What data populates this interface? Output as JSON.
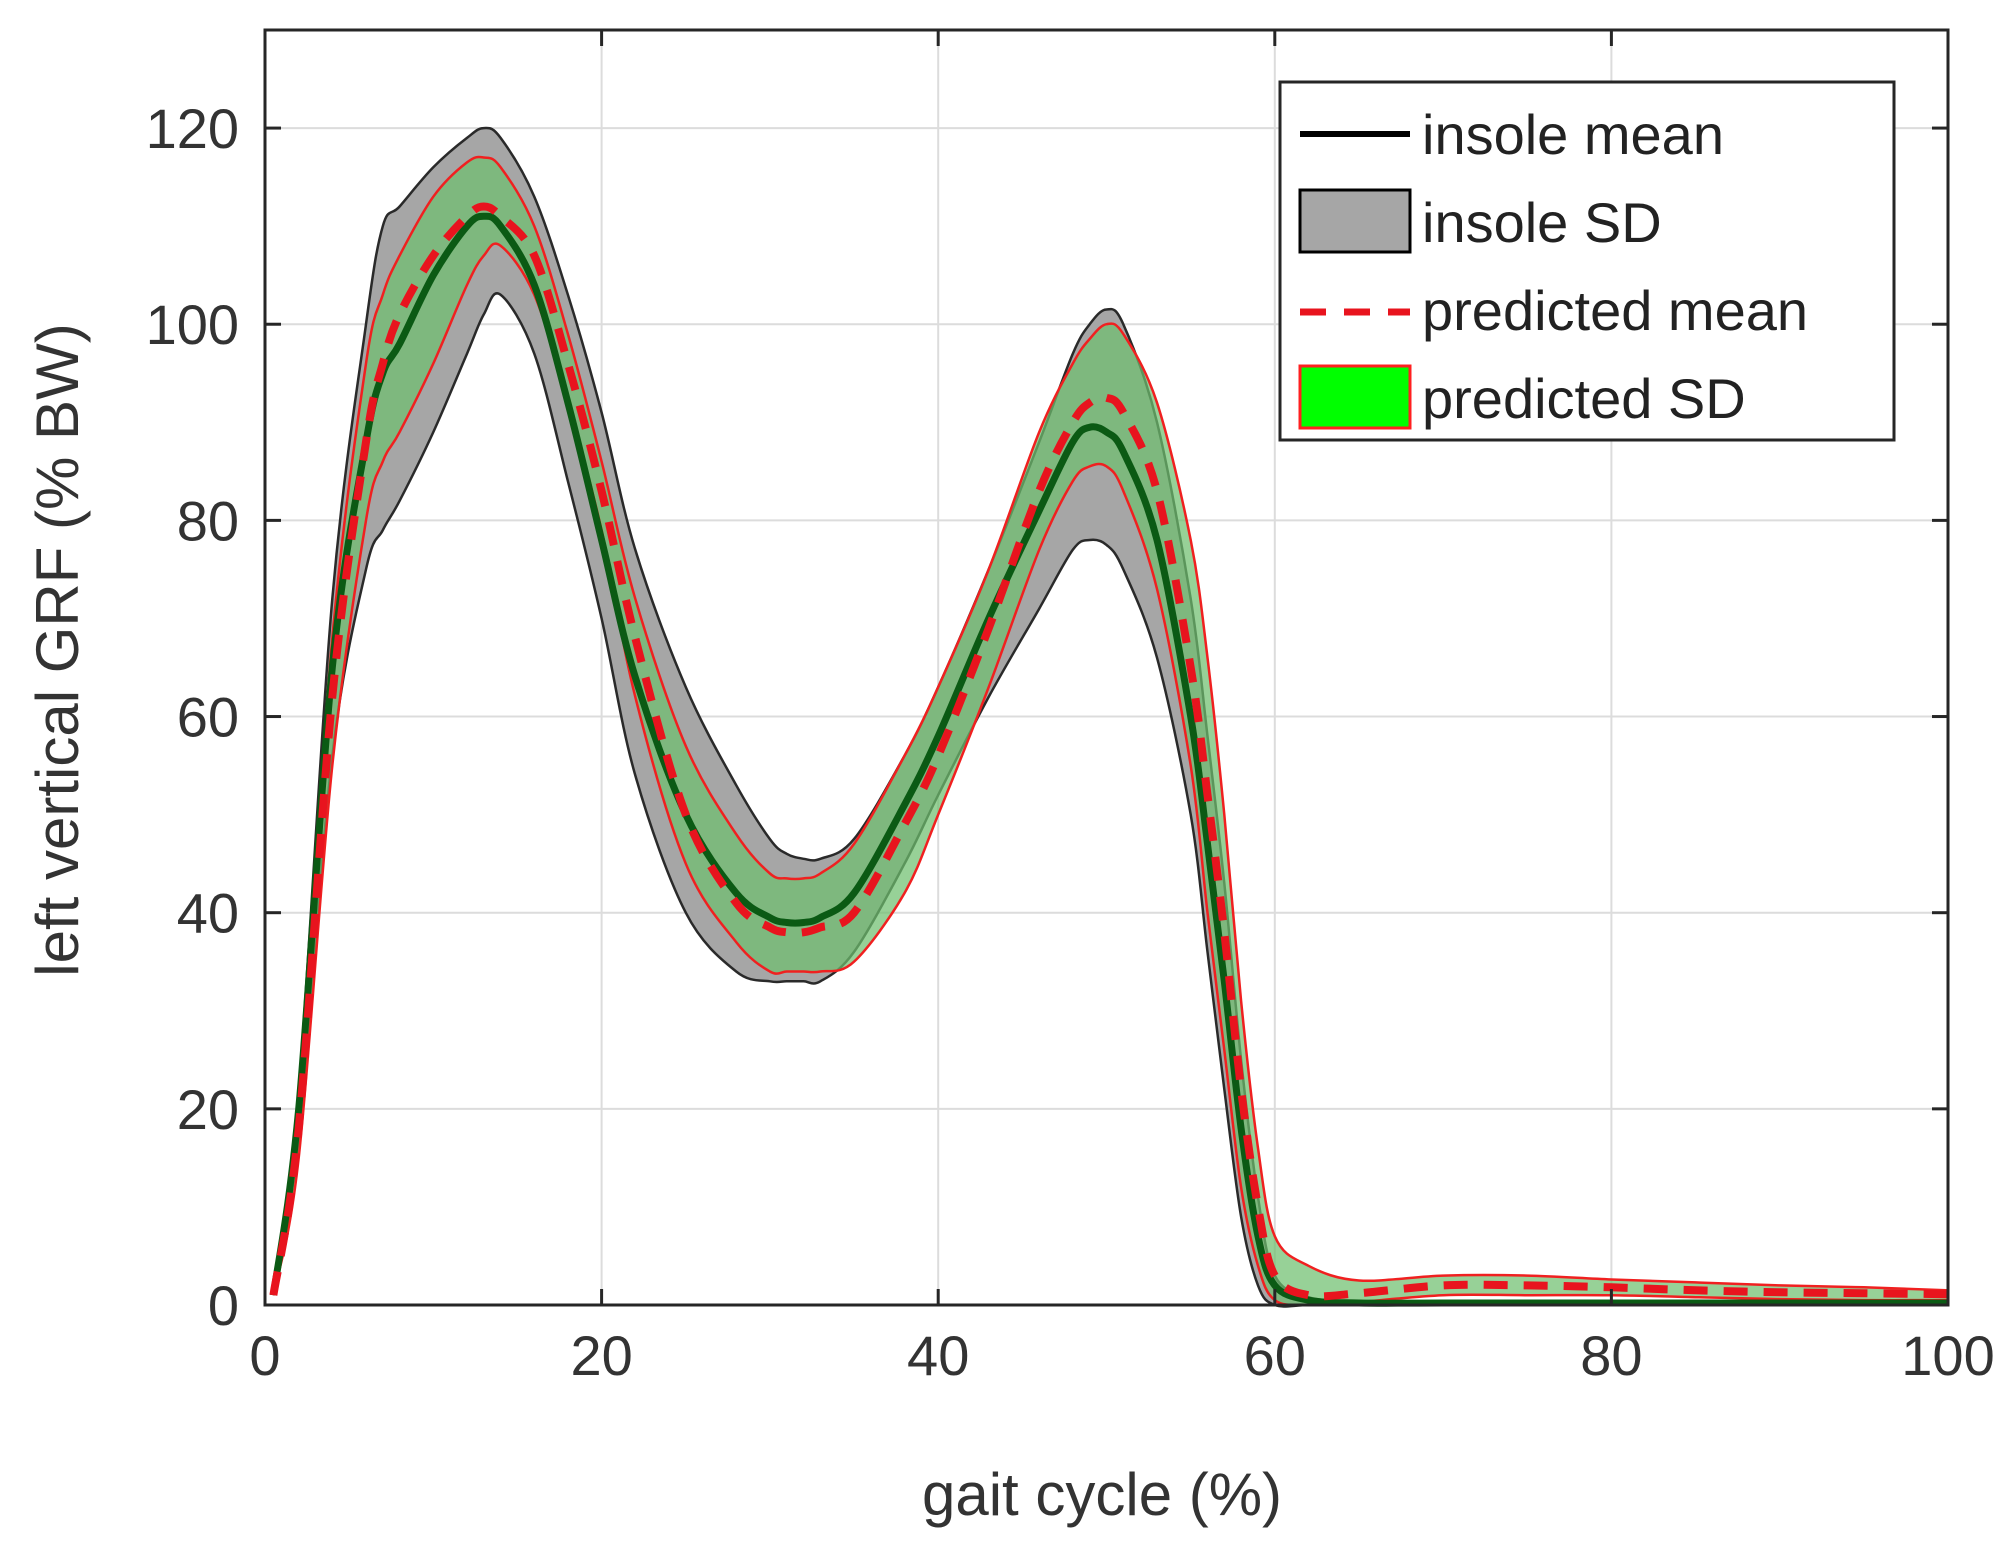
{
  "chart_data": {
    "type": "line",
    "title": "",
    "xlabel": "gait cycle (%)",
    "ylabel": "left vertical GRF (% BW)",
    "xlim": [
      0,
      100
    ],
    "ylim": [
      0,
      130
    ],
    "xticks": [
      0,
      20,
      40,
      60,
      80,
      100
    ],
    "yticks": [
      0,
      20,
      40,
      60,
      80,
      100,
      120
    ],
    "grid": true,
    "legend_position": "top-right",
    "legend": [
      {
        "label": "insole mean",
        "kind": "line",
        "color": "#000000",
        "dash": "solid"
      },
      {
        "label": "insole SD",
        "kind": "patch",
        "color": "#a0a0a0",
        "edge": "#000000"
      },
      {
        "label": "predicted mean",
        "kind": "line",
        "color": "#e00000",
        "dash": "dashed"
      },
      {
        "label": "predicted SD",
        "kind": "patch",
        "color": "#00ff00",
        "edge": "#ff0000"
      }
    ],
    "colors": {
      "insole_mean": "#0a0a0a",
      "insole_sd_fill": "#a6a6a6",
      "insole_sd_edge": "#2a2a2a",
      "predicted_mean": "#e8141e",
      "predicted_sd_fill": "#6fbf6f",
      "predicted_sd_edge": "#f02020",
      "overlap_mean": "#0b5a14"
    },
    "x": [
      0.5,
      2,
      4,
      6,
      7,
      8,
      10,
      12,
      13,
      14,
      16,
      18,
      20,
      22,
      25,
      28,
      30,
      31,
      32,
      33,
      35,
      38,
      40,
      43,
      46,
      48,
      49,
      50,
      51,
      53,
      55,
      56,
      57,
      58,
      59,
      60,
      62,
      65,
      70,
      75,
      80,
      85,
      90,
      95,
      100
    ],
    "series": [
      {
        "name": "insole mean",
        "values": [
          1,
          20,
          65,
          88,
          95,
          98,
          105,
          110,
          111,
          110,
          104,
          92,
          78,
          64,
          50,
          42,
          39.5,
          39,
          39,
          39.5,
          42,
          51,
          58,
          70,
          81,
          88,
          89.5,
          89,
          87,
          78,
          60,
          47,
          33,
          18,
          7,
          2,
          0.5,
          0.2,
          0.2,
          0.2,
          0.2,
          0.2,
          0.2,
          0.2,
          0.2
        ]
      },
      {
        "name": "insole SD upper",
        "values": [
          1,
          22,
          72,
          100,
          110,
          112,
          116,
          119,
          120,
          119,
          113,
          103,
          91,
          77,
          63,
          53,
          47.5,
          46,
          45.5,
          45.5,
          47.5,
          56,
          63,
          75,
          88,
          97,
          100,
          101.5,
          100,
          90,
          72,
          58,
          43,
          25,
          11,
          3,
          0.8,
          0.4,
          0.4,
          0.4,
          0.4,
          0.4,
          0.4,
          0.4,
          0.4
        ]
      },
      {
        "name": "insole SD lower",
        "values": [
          1,
          17,
          56,
          75,
          79,
          82,
          89,
          97,
          101,
          103,
          97,
          84,
          70,
          54,
          40,
          34,
          33,
          33,
          33,
          33,
          36,
          45,
          52,
          62,
          71,
          77,
          78,
          77.5,
          75,
          66,
          50,
          36,
          22,
          9,
          2,
          0,
          0,
          0,
          0,
          0,
          0,
          0,
          0,
          0,
          0
        ]
      },
      {
        "name": "predicted mean",
        "values": [
          1,
          18,
          62,
          88,
          96,
          101,
          107,
          111,
          112,
          111,
          107,
          96,
          83,
          68,
          50,
          41,
          38.5,
          38,
          38,
          38.5,
          40,
          49,
          56,
          69,
          83,
          90,
          92,
          92.5,
          91,
          83,
          65,
          52,
          38,
          22,
          10,
          3,
          1,
          1.2,
          2,
          2,
          1.8,
          1.5,
          1.3,
          1.2,
          1.1
        ]
      },
      {
        "name": "predicted SD upper",
        "values": [
          1,
          21,
          68,
          96,
          103,
          107,
          113,
          116.5,
          117,
          116,
          110,
          99,
          86,
          72,
          57,
          48,
          44,
          43.5,
          43.5,
          44,
          47,
          56,
          63,
          75,
          89,
          96,
          98.5,
          100,
          99,
          92,
          78,
          66,
          50,
          31,
          16,
          7,
          4,
          2.5,
          3,
          3,
          2.6,
          2.3,
          2,
          1.8,
          1.5
        ]
      },
      {
        "name": "predicted SD lower",
        "values": [
          1,
          15,
          55,
          80,
          86,
          89,
          96,
          104,
          107,
          108,
          103,
          92,
          79,
          62,
          45,
          37,
          34,
          34,
          34,
          34,
          35,
          42,
          50,
          63,
          77,
          84,
          85.5,
          85.5,
          83,
          73,
          55,
          40,
          26,
          12,
          4,
          0.5,
          0,
          0.3,
          1,
          1,
          1,
          0.8,
          0.6,
          0.5,
          0.5
        ]
      }
    ]
  }
}
